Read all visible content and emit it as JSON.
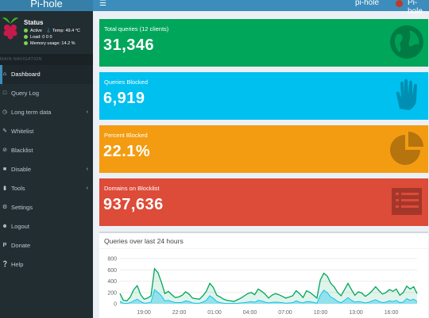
{
  "app": {
    "logo_text": "Pi-hole",
    "hostname": "pi-hole",
    "brand": "Pi-hole"
  },
  "sidebar": {
    "status": {
      "title": "Status",
      "line1": "Active",
      "temp": "Temp: 49.4 °C",
      "load": "Load:  0  0  0",
      "memory": "Memory usage:  14.2 %"
    },
    "nav_header": "MAIN NAVIGATION",
    "items": [
      {
        "label": "Dashboard",
        "icon": "home-icon"
      },
      {
        "label": "Query Log",
        "icon": "file-icon"
      },
      {
        "label": "Long term data",
        "icon": "clock-icon"
      },
      {
        "label": "Whitelist",
        "icon": "edit-icon"
      },
      {
        "label": "Blacklist",
        "icon": "ban-icon"
      },
      {
        "label": "Disable",
        "icon": "stop-icon"
      },
      {
        "label": "Tools",
        "icon": "folder-icon"
      },
      {
        "label": "Settings",
        "icon": "gears-icon"
      },
      {
        "label": "Logout",
        "icon": "user-times-icon"
      },
      {
        "label": "Donate",
        "icon": "paypal-icon"
      },
      {
        "label": "Help",
        "icon": "question-icon"
      }
    ]
  },
  "stats": {
    "total_queries": {
      "label": "Total queries (12 clients)",
      "value": "31,346",
      "color": "#00a65a"
    },
    "queries_blocked": {
      "label": "Queries Blocked",
      "value": "6,919",
      "color": "#00c0ef"
    },
    "percent_blocked": {
      "label": "Percent Blocked",
      "value": "22.1%",
      "color": "#f39c12"
    },
    "domains_blocklist": {
      "label": "Domains on Blocklist",
      "value": "937,636",
      "color": "#dd4b39"
    }
  },
  "chart_data": {
    "type": "area",
    "title": "Queries over last 24 hours",
    "ylim": [
      0,
      800
    ],
    "yticks": [
      "800",
      "600",
      "400",
      "200",
      "0"
    ],
    "xticks": [
      "19:00",
      "22:00",
      "01:00",
      "04:00",
      "07:00",
      "10:00",
      "13:00",
      "16:00"
    ],
    "series": [
      {
        "color": "#00a65a",
        "values": [
          180,
          60,
          50,
          120,
          250,
          320,
          160,
          80,
          100,
          140,
          620,
          550,
          380,
          180,
          220,
          160,
          110,
          120,
          150,
          210,
          170,
          100,
          90,
          80,
          140,
          220,
          360,
          290,
          150,
          120,
          80,
          60,
          50,
          40,
          70,
          100,
          140,
          180,
          200,
          160,
          260,
          220,
          170,
          100,
          150,
          180,
          160,
          130,
          100,
          120,
          140,
          230,
          180,
          110,
          230,
          200,
          150,
          100,
          420,
          540,
          490,
          360,
          300,
          200,
          140,
          250,
          360,
          250,
          150,
          210,
          190,
          130,
          170,
          230,
          300,
          230,
          170,
          200,
          250,
          220,
          260,
          150,
          200,
          310,
          260,
          300,
          180
        ]
      },
      {
        "color": "#00c0ef",
        "values": [
          40,
          10,
          5,
          20,
          50,
          80,
          40,
          10,
          15,
          30,
          250,
          200,
          140,
          50,
          60,
          40,
          20,
          20,
          25,
          50,
          40,
          15,
          10,
          10,
          30,
          60,
          140,
          100,
          40,
          20,
          10,
          5,
          5,
          5,
          10,
          15,
          20,
          30,
          40,
          25,
          60,
          50,
          30,
          15,
          25,
          30,
          25,
          20,
          10,
          15,
          20,
          50,
          30,
          15,
          40,
          35,
          25,
          10,
          150,
          240,
          200,
          120,
          90,
          40,
          20,
          60,
          110,
          60,
          30,
          40,
          30,
          15,
          25,
          50,
          70,
          40,
          20,
          30,
          50,
          40,
          60,
          20,
          30,
          90,
          60,
          80,
          40
        ]
      }
    ]
  }
}
